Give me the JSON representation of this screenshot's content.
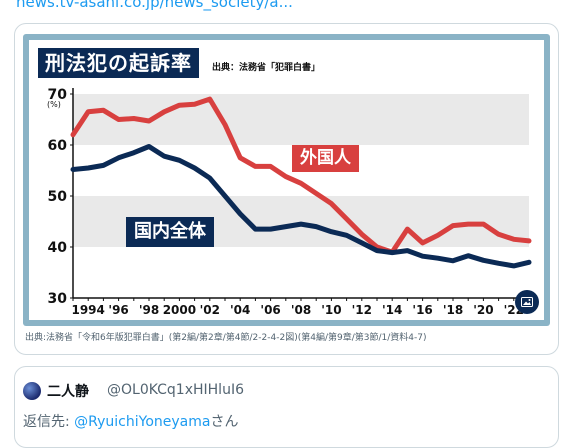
{
  "top_link": "news.tv-asahi.co.jp/news_society/a...",
  "chart_title": "刑法犯の起訴率",
  "chart_source_small": "出典：法務省「犯罪白書」",
  "caption": "出典:法務省「令和6年版犯罪白書」(第2編/第2章/第4節/2-2-4-2図)(第4編/第9章/第3節/1/資料4-7)",
  "chart_data": {
    "type": "line",
    "title": "刑法犯の起訴率",
    "x": [
      1993,
      1994,
      1995,
      1996,
      1997,
      1998,
      1999,
      2000,
      2001,
      2002,
      2003,
      2004,
      2005,
      2006,
      2007,
      2008,
      2009,
      2010,
      2011,
      2012,
      2013,
      2014,
      2015,
      2016,
      2017,
      2018,
      2019,
      2020,
      2021,
      2022,
      2023
    ],
    "series": [
      {
        "name": "外国人",
        "values": [
          62,
          66.5,
          66.8,
          65,
          65.2,
          64.7,
          66.5,
          67.8,
          68,
          69,
          64,
          57.5,
          55.8,
          55.8,
          53.8,
          52.5,
          50.5,
          48.5,
          45.5,
          42.5,
          40,
          39,
          43.5,
          40.8,
          42.3,
          44.2,
          44.5,
          44.5,
          42.5,
          41.5,
          41.2
        ]
      },
      {
        "name": "国内全体",
        "values": [
          55.2,
          55.5,
          56,
          57.5,
          58.5,
          59.7,
          57.8,
          57,
          55.5,
          53.5,
          50,
          46.5,
          43.5,
          43.5,
          44,
          44.5,
          44,
          43,
          42.3,
          40.8,
          39.3,
          38.9,
          39.3,
          38.2,
          37.8,
          37.3,
          38.3,
          37.4,
          36.8,
          36.3,
          37
        ]
      }
    ],
    "y_unit": "(%)",
    "ylim": [
      30,
      70
    ],
    "y_ticks": [
      30,
      40,
      50,
      60,
      70
    ],
    "x_tick_labels": [
      {
        "year": 1994,
        "label": "1994"
      },
      {
        "year": 1996,
        "label": "'96"
      },
      {
        "year": 1998,
        "label": "'98"
      },
      {
        "year": 2000,
        "label": "2000"
      },
      {
        "year": 2002,
        "label": "'02"
      },
      {
        "year": 2004,
        "label": "'04"
      },
      {
        "year": 2006,
        "label": "'06"
      },
      {
        "year": 2008,
        "label": "'08"
      },
      {
        "year": 2010,
        "label": "'10"
      },
      {
        "year": 2012,
        "label": "'12"
      },
      {
        "year": 2014,
        "label": "'14"
      },
      {
        "year": 2016,
        "label": "'16"
      },
      {
        "year": 2018,
        "label": "'18"
      },
      {
        "year": 2020,
        "label": "'20"
      },
      {
        "year": 2022,
        "label": "'22"
      }
    ],
    "colors": {
      "foreign": "#d8403f",
      "national": "#0b2a55",
      "band": "#e9e9e9"
    }
  },
  "tweet": {
    "name": "二人静",
    "handle": "@OL0KCq1xHIHluI6",
    "reply_prefix": "返信先: ",
    "reply_user": "@RyuichiYoneyama",
    "reply_suffix": "さん"
  }
}
